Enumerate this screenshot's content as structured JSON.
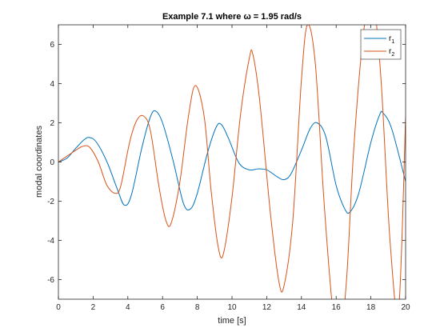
{
  "chart_data": {
    "type": "line",
    "title": "Example 7.1 where ω = 1.95 rad/s",
    "xlabel": "time [s]",
    "ylabel": "modal coordinates",
    "xlim": [
      0,
      20
    ],
    "ylim": [
      -7,
      7
    ],
    "xticks": [
      0,
      2,
      4,
      6,
      8,
      10,
      12,
      14,
      16,
      18,
      20
    ],
    "yticks": [
      -6,
      -4,
      -2,
      0,
      2,
      4,
      6
    ],
    "grid": false,
    "legend_position": "top-right",
    "series": [
      {
        "name": "r",
        "name_subscript": "1",
        "color": "#0072BD",
        "x": [
          0,
          0.5,
          1.0,
          1.5,
          1.8,
          2.2,
          2.8,
          3.4,
          3.8,
          4.2,
          4.8,
          5.3,
          5.6,
          6.0,
          6.6,
          7.2,
          7.6,
          8.0,
          8.6,
          9.1,
          9.4,
          9.8,
          10.4,
          11.0,
          11.5,
          12.0,
          12.6,
          13.0,
          13.4,
          14.0,
          14.5,
          14.9,
          15.4,
          16.0,
          16.5,
          16.8,
          17.3,
          18.0,
          18.5,
          18.7,
          19.2,
          20.0
        ],
        "y": [
          0,
          0.2,
          0.7,
          1.15,
          1.25,
          1.0,
          0.0,
          -1.4,
          -2.2,
          -1.7,
          0.7,
          2.3,
          2.6,
          2.0,
          0.1,
          -2.1,
          -2.4,
          -1.6,
          0.5,
          1.8,
          1.9,
          1.2,
          -0.05,
          -0.4,
          -0.35,
          -0.4,
          -0.75,
          -0.9,
          -0.6,
          0.6,
          1.7,
          2.0,
          1.3,
          -1.2,
          -2.4,
          -2.55,
          -1.6,
          1.0,
          2.4,
          2.5,
          1.7,
          -1.0
        ]
      },
      {
        "name": "r",
        "name_subscript": "2",
        "color": "#D95319",
        "x": [
          0,
          0.5,
          1.0,
          1.4,
          1.8,
          2.3,
          2.8,
          3.3,
          3.6,
          4.1,
          4.5,
          4.9,
          5.3,
          5.8,
          6.2,
          6.5,
          7.0,
          7.5,
          7.9,
          8.4,
          8.8,
          9.2,
          9.5,
          10.0,
          10.5,
          11.0,
          11.2,
          11.6,
          12.2,
          12.7,
          13.0,
          13.5,
          14.0,
          14.35,
          14.8,
          15.3,
          15.8,
          16.2,
          16.6,
          17.0,
          17.5,
          17.8,
          18.2,
          18.6,
          19.1,
          19.6,
          20.0
        ],
        "y": [
          0,
          0.3,
          0.6,
          0.8,
          0.75,
          0.0,
          -1.2,
          -1.6,
          -1.2,
          1.0,
          2.1,
          2.35,
          1.6,
          -1.3,
          -3.0,
          -3.1,
          -1.0,
          2.4,
          3.9,
          2.3,
          -1.5,
          -4.3,
          -4.7,
          -1.8,
          2.5,
          5.3,
          5.5,
          3.1,
          -2.5,
          -6.1,
          -6.3,
          -3.0,
          4.2,
          7.0,
          5.0,
          -2.0,
          -7.5,
          -9.0,
          -6.0,
          0.5,
          6.0,
          7.5,
          7.8,
          4.0,
          -4.0,
          -7.5,
          2.3
        ]
      }
    ]
  }
}
